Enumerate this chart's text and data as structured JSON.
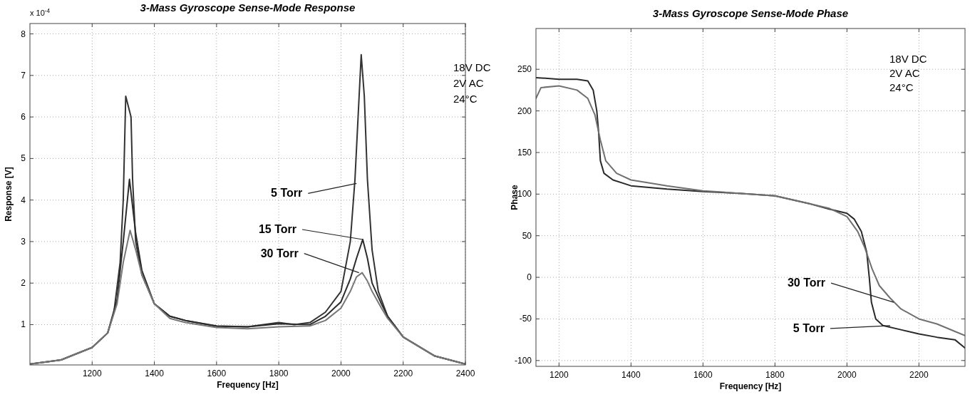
{
  "chart_data": [
    {
      "type": "line",
      "title": "3-Mass Gyroscope Sense-Mode Response",
      "xlabel": "Frequency [Hz]",
      "ylabel": "Response [V]",
      "xlim": [
        1000,
        2400
      ],
      "ylim": [
        0.03,
        8.25
      ],
      "xticks": [
        1200,
        1400,
        1600,
        1800,
        2000,
        2200,
        2400
      ],
      "yticks": [
        1,
        2,
        3,
        4,
        5,
        6,
        7,
        8
      ],
      "grid": true,
      "marker": "none",
      "line_style": "solid",
      "series": [
        {
          "color": "#333333",
          "x": [
            1000,
            1100,
            1200,
            1250,
            1270,
            1290,
            1300,
            1308,
            1313,
            1318,
            1325,
            1330,
            1340,
            1360,
            1400,
            1450,
            1500,
            1600,
            1700,
            1800,
            1850,
            1900,
            1950,
            2000,
            2030,
            2045,
            2055,
            2065,
            2075,
            2085,
            2100,
            2120,
            2150,
            2200,
            2300,
            2400
          ],
          "values": [
            0.05,
            0.15,
            0.45,
            0.8,
            1.3,
            2.5,
            4.0,
            6.5,
            null,
            null,
            6.0,
            4.5,
            3.0,
            2.2,
            1.5,
            1.2,
            1.1,
            0.97,
            0.95,
            1.05,
            1.0,
            1.05,
            1.3,
            1.8,
            3.0,
            4.5,
            6.0,
            7.5,
            6.5,
            4.5,
            2.8,
            1.8,
            1.2,
            0.7,
            0.25,
            0.05
          ]
        },
        {
          "color": "#2b2b2b",
          "x": [
            1000,
            1100,
            1200,
            1250,
            1280,
            1300,
            1320,
            1340,
            1360,
            1400,
            1450,
            1500,
            1600,
            1700,
            1800,
            1900,
            1950,
            2000,
            2030,
            2050,
            2070,
            2085,
            2100,
            2130,
            2150,
            2200,
            2300,
            2400
          ],
          "values": [
            0.05,
            0.15,
            0.45,
            0.8,
            1.6,
            3.0,
            4.5,
            3.2,
            2.3,
            1.5,
            1.2,
            1.1,
            0.96,
            0.95,
            1.02,
            1.0,
            1.2,
            1.55,
            2.1,
            2.6,
            3.05,
            2.6,
            2.0,
            1.5,
            1.2,
            0.7,
            0.25,
            0.05
          ]
        },
        {
          "color": "#777777",
          "x": [
            1000,
            1100,
            1200,
            1250,
            1280,
            1300,
            1322,
            1340,
            1360,
            1400,
            1450,
            1500,
            1600,
            1700,
            1800,
            1900,
            1950,
            2000,
            2030,
            2050,
            2068,
            2085,
            2100,
            2130,
            2150,
            2200,
            2300,
            2400
          ],
          "values": [
            0.05,
            0.15,
            0.45,
            0.8,
            1.5,
            2.5,
            3.27,
            2.8,
            2.2,
            1.5,
            1.15,
            1.05,
            0.93,
            0.9,
            0.95,
            0.97,
            1.1,
            1.4,
            1.8,
            2.15,
            2.25,
            2.05,
            1.8,
            1.4,
            1.15,
            0.7,
            0.25,
            0.05
          ]
        }
      ],
      "annotations": [
        "x 10$^{-4}$",
        "18V DC",
        "2V AC",
        "24°C",
        {
          "text": "5 Torr",
          "x": 2050,
          "y": 4.4
        },
        {
          "text": "15 Torr",
          "x": 2070,
          "y": 3.05
        },
        {
          "text": "30 Torr",
          "x": 2058,
          "y": 2.25
        }
      ]
    },
    {
      "type": "line",
      "title": "3-Mass Gyroscope Sense-Mode Phase",
      "xlabel": "Frequency [Hz]",
      "ylabel": "Phase",
      "xlim": [
        1136,
        2328
      ],
      "ylim": [
        -107,
        299
      ],
      "xticks": [
        1200,
        1400,
        1600,
        1800,
        2000,
        2200
      ],
      "yticks": [
        -100,
        -50,
        0,
        50,
        100,
        150,
        200,
        250
      ],
      "grid": true,
      "marker": "none",
      "line_style": "solid",
      "series": [
        {
          "color": "#2a2a2a",
          "x": [
            1136,
            1200,
            1250,
            1280,
            1295,
            1305,
            1310,
            1315,
            1325,
            1350,
            1400,
            1500,
            1600,
            1700,
            1800,
            1850,
            1900,
            1950,
            2000,
            2020,
            2040,
            2055,
            2062,
            2068,
            2080,
            2100,
            2150,
            2200,
            2250,
            2300,
            2328
          ],
          "values": [
            240,
            238,
            238,
            236,
            225,
            200,
            175,
            140,
            125,
            117,
            110,
            106,
            103,
            101,
            98,
            93,
            88,
            82,
            77,
            70,
            55,
            30,
            0,
            -30,
            -50,
            -58,
            -63,
            -68,
            -72,
            -75,
            -85
          ]
        },
        {
          "color": "#707070",
          "x": [
            1136,
            1150,
            1200,
            1250,
            1280,
            1300,
            1315,
            1330,
            1360,
            1400,
            1500,
            1600,
            1700,
            1800,
            1900,
            1950,
            2000,
            2030,
            2050,
            2070,
            2090,
            2120,
            2150,
            2200,
            2250,
            2300,
            2328
          ],
          "values": [
            215,
            228,
            230,
            225,
            215,
            195,
            165,
            140,
            125,
            117,
            110,
            104,
            101,
            98,
            88,
            83,
            73,
            55,
            35,
            10,
            -10,
            -25,
            -38,
            -50,
            -56,
            -65,
            -70
          ]
        }
      ],
      "annotations": [
        "18V DC",
        "2V AC",
        "24°C",
        {
          "text": "30 Torr",
          "x": 2130,
          "y": -30
        },
        {
          "text": "5 Torr",
          "x": 2120,
          "y": -58
        }
      ]
    }
  ]
}
